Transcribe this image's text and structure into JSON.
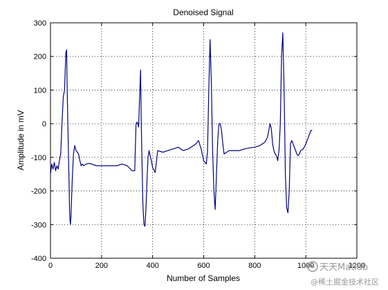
{
  "chart_data": {
    "type": "line",
    "title": "Denoised Signal",
    "xlabel": "Number of Samples",
    "ylabel": "Amplitude in mV",
    "xlim": [
      0,
      1200
    ],
    "ylim": [
      -400,
      300
    ],
    "xticks": [
      0,
      200,
      400,
      600,
      800,
      1000,
      1200
    ],
    "yticks": [
      -400,
      -300,
      -200,
      -100,
      0,
      100,
      200,
      300
    ],
    "grid": true,
    "series": [
      {
        "color": "#000080",
        "x": [
          0,
          5,
          10,
          15,
          20,
          25,
          30,
          35,
          40,
          45,
          50,
          55,
          60,
          63,
          65,
          68,
          72,
          75,
          78,
          80,
          85,
          90,
          95,
          100,
          105,
          110,
          115,
          120,
          125,
          130,
          140,
          150,
          160,
          180,
          200,
          220,
          240,
          260,
          280,
          300,
          320,
          330,
          335,
          340,
          345,
          350,
          353,
          355,
          358,
          362,
          366,
          370,
          374,
          378,
          382,
          386,
          390,
          395,
          400,
          410,
          420,
          440,
          460,
          480,
          500,
          520,
          540,
          560,
          570,
          580,
          590,
          600,
          610,
          615,
          620,
          625,
          630,
          635,
          640,
          645,
          650,
          655,
          660,
          665,
          670,
          675,
          680,
          690,
          700,
          720,
          740,
          760,
          780,
          800,
          820,
          840,
          850,
          860,
          865,
          870,
          875,
          880,
          885,
          890,
          895,
          900,
          905,
          910,
          915,
          920,
          925,
          930,
          935,
          940,
          945,
          950,
          955,
          960,
          965,
          970,
          975,
          980,
          990,
          1000,
          1010,
          1020,
          1025
        ],
        "y": [
          -150,
          -120,
          -135,
          -115,
          -140,
          -125,
          -135,
          -110,
          -90,
          0,
          80,
          100,
          210,
          220,
          120,
          0,
          -150,
          -270,
          -300,
          -280,
          -170,
          -90,
          -65,
          -80,
          -85,
          -90,
          -110,
          -125,
          -120,
          -125,
          -120,
          -118,
          -120,
          -125,
          -125,
          -125,
          -125,
          -125,
          -120,
          -125,
          -140,
          -140,
          0,
          5,
          -10,
          100,
          160,
          20,
          -100,
          -240,
          -300,
          -305,
          -250,
          -170,
          -100,
          -80,
          -95,
          -110,
          -130,
          -145,
          -80,
          -85,
          -80,
          -75,
          -70,
          -80,
          -75,
          -65,
          -60,
          -50,
          -75,
          -110,
          -120,
          -85,
          100,
          250,
          120,
          -80,
          -200,
          -255,
          -150,
          -50,
          0,
          0,
          -20,
          -60,
          -90,
          -85,
          -80,
          -80,
          -80,
          -75,
          -72,
          -70,
          -65,
          -55,
          -40,
          0,
          -15,
          -60,
          -80,
          -90,
          -95,
          -110,
          -80,
          0,
          200,
          270,
          100,
          -150,
          -250,
          -265,
          -200,
          -60,
          -50,
          -60,
          -70,
          -80,
          -90,
          -95,
          -90,
          -80,
          -75,
          -60,
          -40,
          -20,
          -20
        ]
      }
    ]
  },
  "watermark": {
    "line1": "天天Matlab",
    "line2": "@稀土掘金技术社区"
  }
}
